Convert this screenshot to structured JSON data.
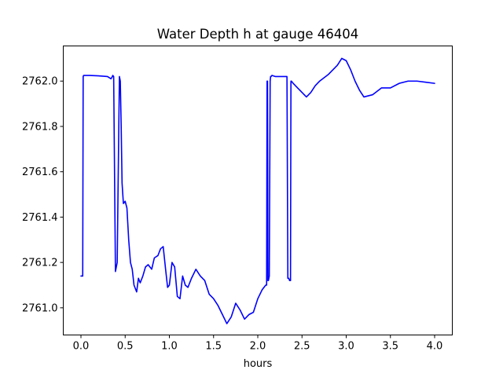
{
  "chart_data": {
    "type": "line",
    "title": "Water Depth h at gauge 46404",
    "xlabel": "hours",
    "ylabel": "",
    "xlim": [
      -0.2,
      4.2
    ],
    "ylim": [
      2760.88,
      2762.155
    ],
    "xticks": [
      0.0,
      0.5,
      1.0,
      1.5,
      2.0,
      2.5,
      3.0,
      3.5,
      4.0
    ],
    "xtick_labels": [
      "0.0",
      "0.5",
      "1.0",
      "1.5",
      "2.0",
      "2.5",
      "3.0",
      "3.5",
      "4.0"
    ],
    "yticks": [
      2761.0,
      2761.2,
      2761.4,
      2761.6,
      2761.8,
      2762.0
    ],
    "ytick_labels": [
      "2761.0",
      "2761.2",
      "2761.4",
      "2761.6",
      "2761.8",
      "2762.0"
    ],
    "grid": false,
    "series": [
      {
        "color": "#0000ff",
        "x": [
          0.0,
          0.02,
          0.025,
          0.03,
          0.1,
          0.2,
          0.3,
          0.34,
          0.355,
          0.36,
          0.37,
          0.39,
          0.41,
          0.425,
          0.435,
          0.445,
          0.455,
          0.465,
          0.48,
          0.5,
          0.52,
          0.54,
          0.56,
          0.58,
          0.6,
          0.63,
          0.65,
          0.67,
          0.7,
          0.73,
          0.76,
          0.8,
          0.83,
          0.87,
          0.9,
          0.93,
          0.96,
          0.98,
          1.0,
          1.03,
          1.06,
          1.09,
          1.12,
          1.15,
          1.18,
          1.21,
          1.25,
          1.3,
          1.35,
          1.4,
          1.45,
          1.5,
          1.55,
          1.6,
          1.65,
          1.7,
          1.75,
          1.8,
          1.85,
          1.9,
          1.95,
          2.0,
          2.05,
          2.09,
          2.1,
          2.105,
          2.11,
          2.115,
          2.12,
          2.13,
          2.14,
          2.145,
          2.15,
          2.16,
          2.2,
          2.25,
          2.3,
          2.33,
          2.34,
          2.35,
          2.36,
          2.37,
          2.375,
          2.38,
          2.4,
          2.45,
          2.5,
          2.55,
          2.6,
          2.65,
          2.7,
          2.8,
          2.9,
          2.95,
          3.0,
          3.05,
          3.1,
          3.15,
          3.2,
          3.3,
          3.4,
          3.5,
          3.6,
          3.7,
          3.8,
          3.9,
          4.0
        ],
        "y": [
          2761.14,
          2761.14,
          2762.02,
          2762.025,
          2762.025,
          2762.023,
          2762.02,
          2762.01,
          2762.02,
          2762.025,
          2762.02,
          2761.16,
          2761.2,
          2761.7,
          2762.02,
          2762.0,
          2761.8,
          2761.55,
          2761.46,
          2761.47,
          2761.44,
          2761.3,
          2761.2,
          2761.17,
          2761.1,
          2761.07,
          2761.13,
          2761.11,
          2761.14,
          2761.18,
          2761.19,
          2761.17,
          2761.22,
          2761.23,
          2761.26,
          2761.27,
          2761.16,
          2761.09,
          2761.1,
          2761.2,
          2761.18,
          2761.05,
          2761.04,
          2761.14,
          2761.1,
          2761.09,
          2761.13,
          2761.17,
          2761.14,
          2761.12,
          2761.06,
          2761.04,
          2761.01,
          2760.97,
          2760.93,
          2760.96,
          2761.02,
          2760.99,
          2760.95,
          2760.97,
          2760.98,
          2761.04,
          2761.08,
          2761.1,
          2761.1,
          2762.0,
          2762.0,
          2761.12,
          2761.12,
          2761.14,
          2762.0,
          2762.02,
          2762.02,
          2762.025,
          2762.02,
          2762.02,
          2762.02,
          2762.02,
          2761.13,
          2761.13,
          2761.12,
          2761.12,
          2762.0,
          2762.0,
          2761.99,
          2761.97,
          2761.95,
          2761.93,
          2761.95,
          2761.98,
          2762.0,
          2762.03,
          2762.07,
          2762.1,
          2762.09,
          2762.05,
          2762.0,
          2761.96,
          2761.93,
          2761.94,
          2761.97,
          2761.97,
          2761.99,
          2762.0,
          2762.0,
          2761.995,
          2761.99
        ]
      }
    ]
  }
}
